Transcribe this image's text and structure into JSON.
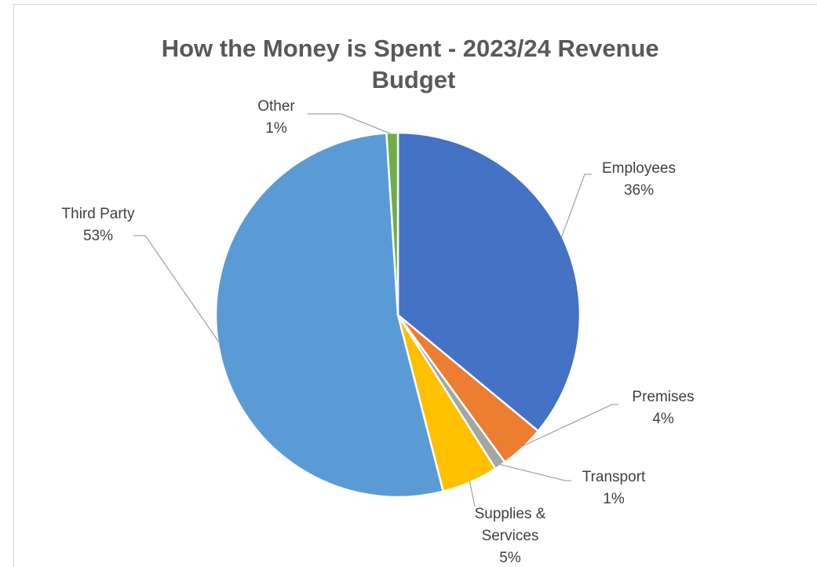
{
  "chart_data": {
    "type": "pie",
    "title": "How the Money is Spent - 2023/24 Revenue Budget",
    "categories": [
      "Employees",
      "Premises",
      "Transport",
      "Supplies & Services",
      "Third Party",
      "Other"
    ],
    "values": [
      36,
      4,
      1,
      5,
      53,
      1
    ],
    "value_labels": [
      "36%",
      "4%",
      "1%",
      "5%",
      "53%",
      "1%"
    ],
    "colors": [
      "#4472c4",
      "#ed7d31",
      "#a5a5a5",
      "#ffc000",
      "#5b9bd5",
      "#70ad47"
    ]
  }
}
